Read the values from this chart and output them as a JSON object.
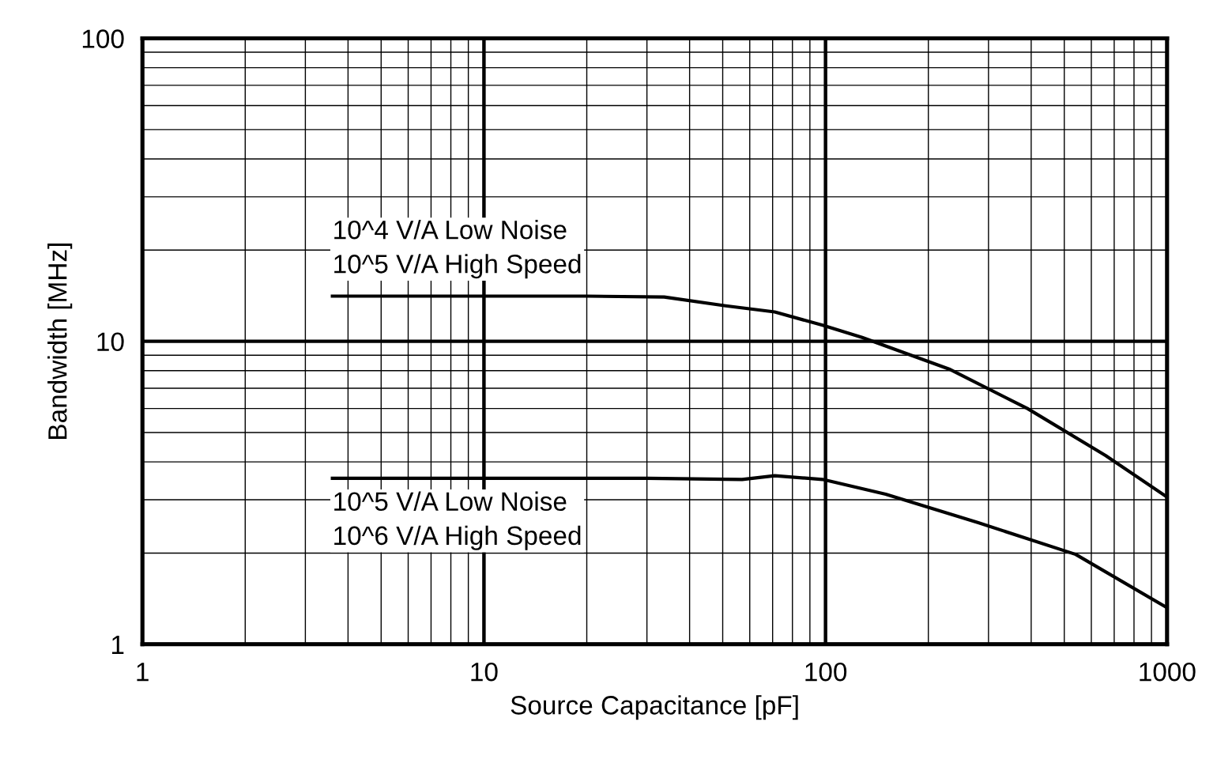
{
  "chart_data": {
    "type": "line",
    "xlabel": "Source Capacitance [pF]",
    "ylabel": "Bandwidth [MHz]",
    "log": "xy",
    "grid": true,
    "xlim": [
      1,
      1000
    ],
    "ylim": [
      1,
      100
    ],
    "xticks": [
      1,
      10,
      100,
      1000
    ],
    "yticks": [
      1,
      10,
      100
    ],
    "series": [
      {
        "color": "#000000",
        "x": [
          3.6,
          10,
          20,
          33.7,
          51,
          71,
          98,
          128,
          230,
          390,
          660,
          1000
        ],
        "values": [
          14.1,
          14.1,
          14.1,
          14,
          13.1,
          12.5,
          11.3,
          10.3,
          8.1,
          6.0,
          4.2,
          3.06
        ]
      },
      {
        "color": "#000000",
        "x": [
          3.6,
          10,
          30,
          57,
          71,
          98,
          150,
          280,
          540,
          1000
        ],
        "values": [
          3.53,
          3.53,
          3.53,
          3.5,
          3.6,
          3.5,
          3.13,
          2.52,
          1.98,
          1.32
        ]
      }
    ],
    "annotations": [
      {
        "text": "10^4 V/A Low Noise\n10^5 V/A High Speed",
        "x": 3.6,
        "y": 14.1
      },
      {
        "text": "10^5 V/A Low Noise\n10^6 V/A High Speed",
        "x": 3.6,
        "y": 3.53
      }
    ]
  }
}
